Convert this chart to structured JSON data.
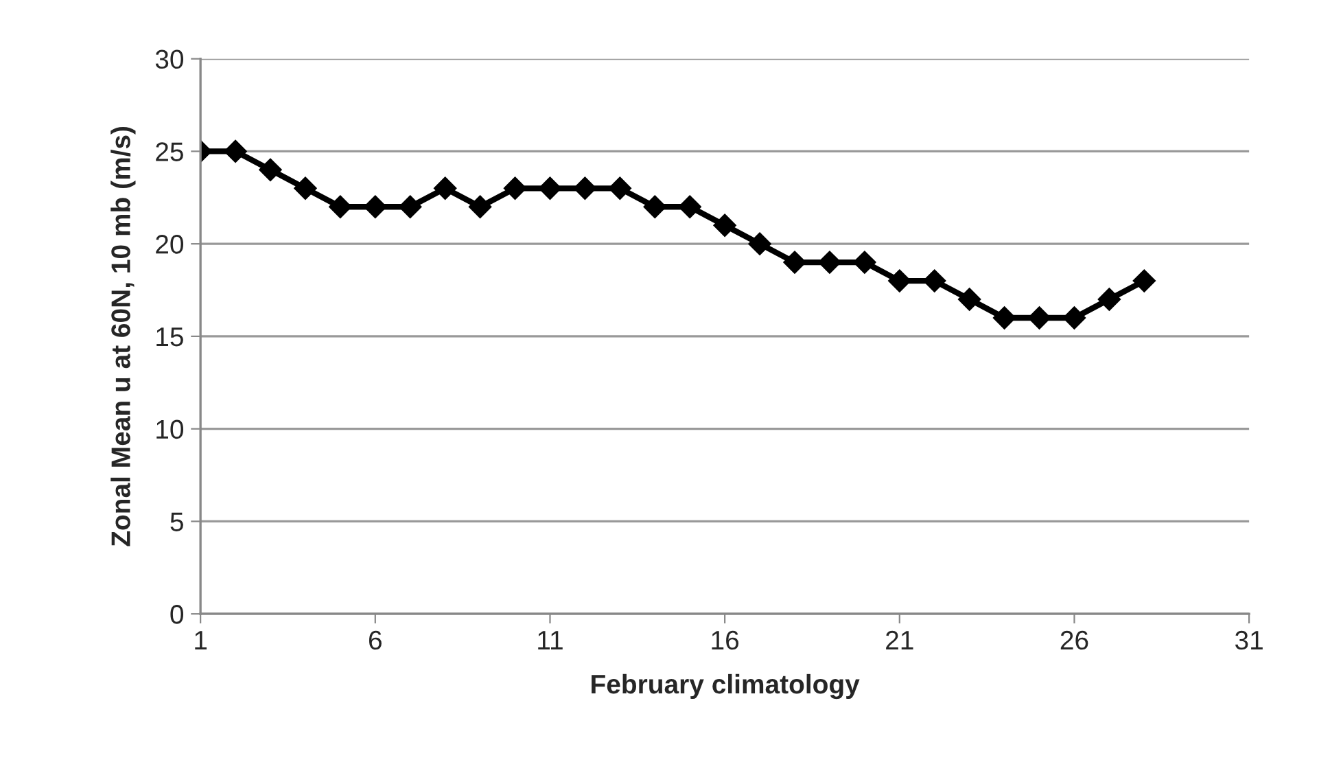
{
  "chart_data": {
    "type": "line",
    "xlabel": "February climatology",
    "ylabel": "Zonal Mean u at 60N, 10 mb (m/s)",
    "x": [
      1,
      2,
      3,
      4,
      5,
      6,
      7,
      8,
      9,
      10,
      11,
      12,
      13,
      14,
      15,
      16,
      17,
      18,
      19,
      20,
      21,
      22,
      23,
      24,
      25,
      26,
      27,
      28
    ],
    "series": [
      {
        "color": "#000000",
        "values": [
          25,
          25,
          24,
          23,
          22,
          22,
          22,
          23,
          22,
          23,
          23,
          23,
          23,
          22,
          22,
          21,
          20,
          19,
          19,
          19,
          18,
          18,
          17,
          16,
          16,
          16,
          17,
          18
        ]
      }
    ],
    "xlim": [
      1,
      31
    ],
    "xticks": [
      1,
      6,
      11,
      16,
      21,
      26,
      31
    ],
    "ylim": [
      0,
      30
    ],
    "yticks": [
      0,
      5,
      10,
      15,
      20,
      25,
      30
    ],
    "grid": "y",
    "marker": "diamond",
    "line_style": "solid"
  }
}
